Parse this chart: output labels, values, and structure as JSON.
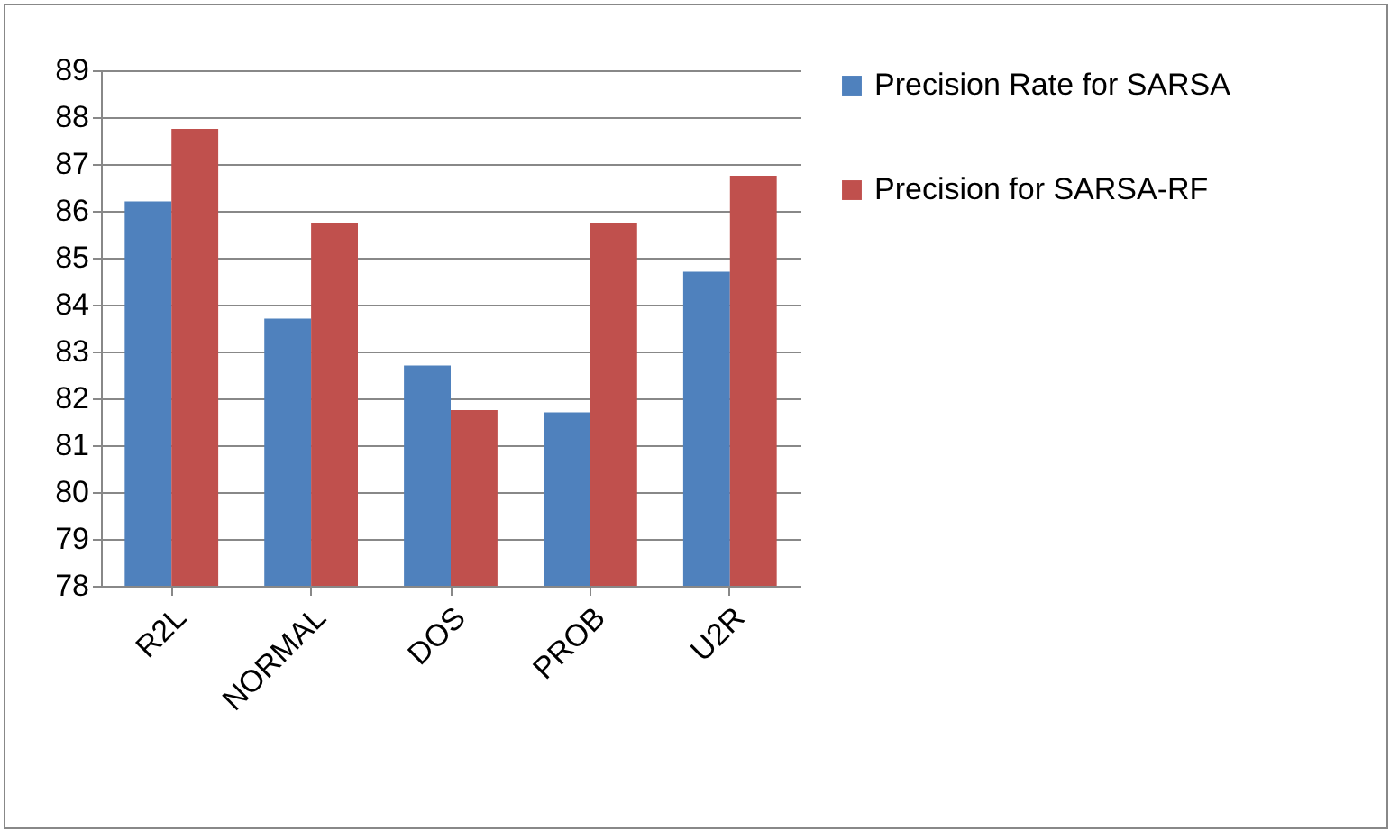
{
  "chart_data": {
    "type": "bar",
    "categories": [
      "R2L",
      "NORMAL",
      "DOS",
      "PROB",
      "U2R"
    ],
    "series": [
      {
        "name": "Precision Rate for SARSA",
        "color": "#4f81bd",
        "values": [
          86.2,
          83.7,
          82.7,
          81.7,
          84.7
        ]
      },
      {
        "name": "Precision for SARSA-RF",
        "color": "#c0504d",
        "values": [
          87.75,
          85.75,
          81.75,
          85.75,
          86.75
        ]
      }
    ],
    "ylim": [
      78,
      89
    ],
    "yticks": [
      78,
      79,
      80,
      81,
      82,
      83,
      84,
      85,
      86,
      87,
      88,
      89
    ],
    "grid": "y",
    "legend": "right"
  }
}
